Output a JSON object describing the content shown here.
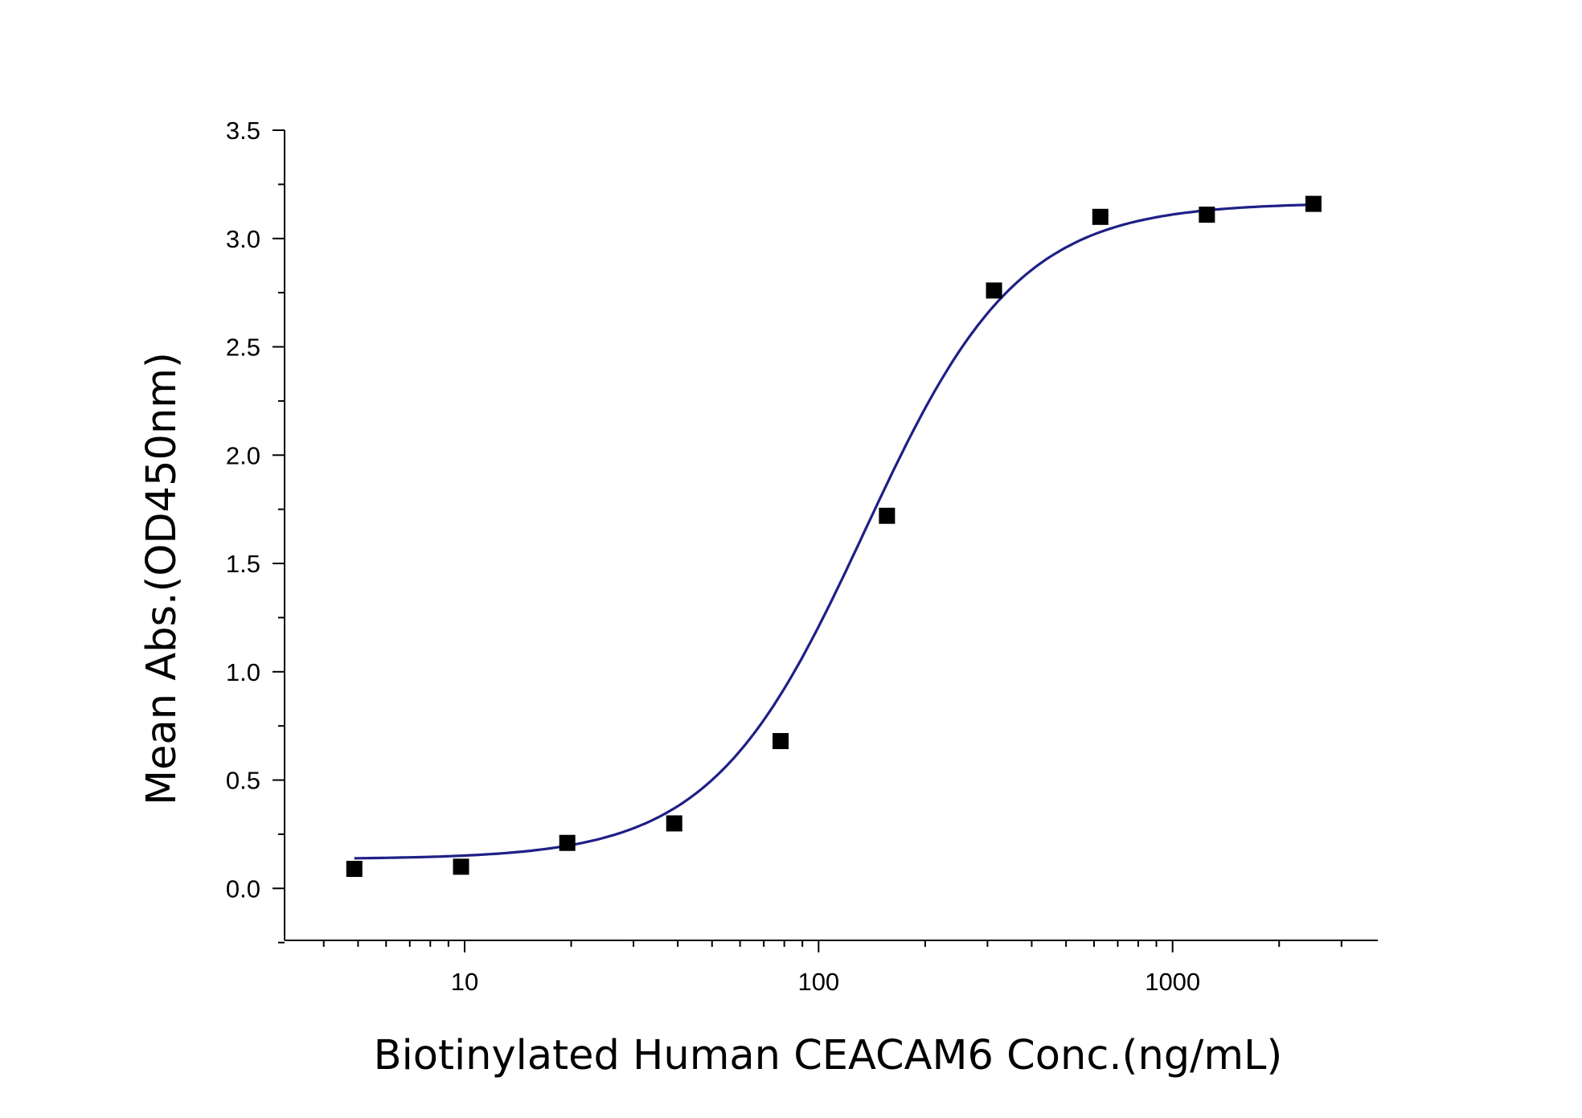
{
  "chart_data": {
    "type": "scatter",
    "title": "",
    "xlabel": "Biotinylated Human CEACAM6 Conc.(ng/mL)",
    "ylabel": "Mean Abs.(OD450nm)",
    "x_scale": "log",
    "xlim": [
      3.1,
      3800
    ],
    "ylim": [
      -0.24,
      3.5
    ],
    "x_ticks": [
      {
        "value": 10,
        "label": "10"
      },
      {
        "value": 100,
        "label": "100"
      },
      {
        "value": 1000,
        "label": "1000"
      }
    ],
    "y_ticks": [
      {
        "value": 0.0,
        "label": "0.0"
      },
      {
        "value": 0.5,
        "label": "0.5"
      },
      {
        "value": 1.0,
        "label": "1.0"
      },
      {
        "value": 1.5,
        "label": "1.5"
      },
      {
        "value": 2.0,
        "label": "2.0"
      },
      {
        "value": 2.5,
        "label": "2.5"
      },
      {
        "value": 3.0,
        "label": "3.0"
      },
      {
        "value": 3.5,
        "label": "3.5"
      }
    ],
    "grid": false,
    "legend": "none",
    "series": [
      {
        "x": [
          4.88,
          9.77,
          19.5,
          39.1,
          78.1,
          156,
          313,
          625,
          1250,
          2500
        ],
        "y": [
          0.09,
          0.1,
          0.21,
          0.3,
          0.68,
          1.72,
          2.76,
          3.1,
          3.11,
          3.16
        ],
        "marker": "square",
        "color": "#000000"
      }
    ],
    "fit_curve": {
      "model": "4PL",
      "bottom": 0.135,
      "top": 3.165,
      "ec50": 135,
      "hill": 2.0,
      "x_range": [
        4.88,
        2500
      ],
      "color": "#1f1f87"
    }
  }
}
